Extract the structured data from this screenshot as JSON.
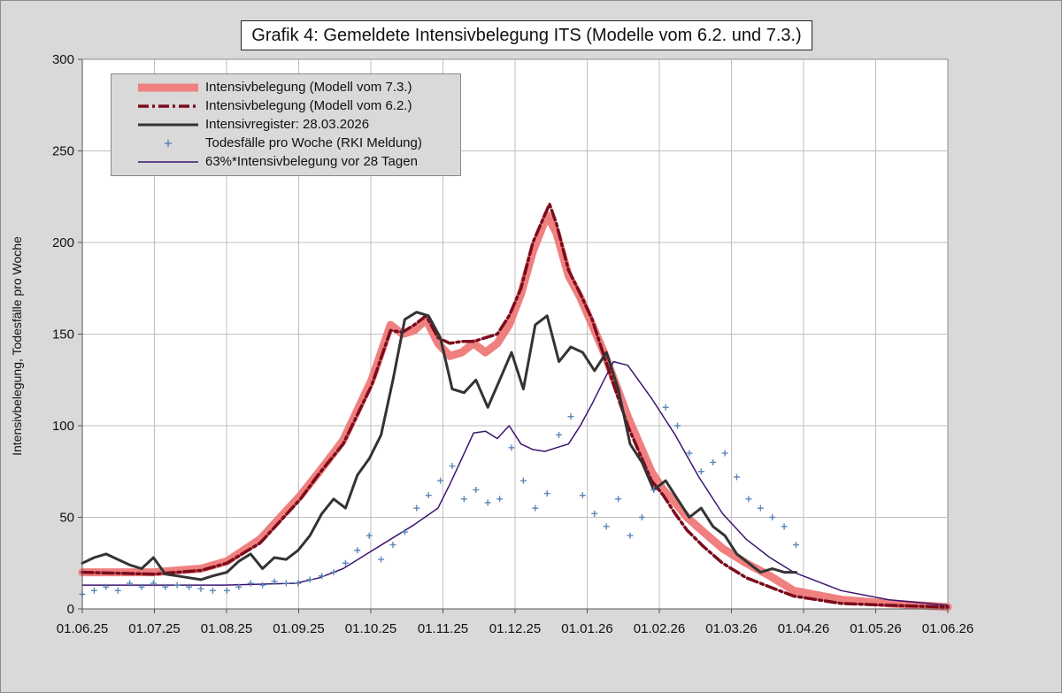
{
  "chart_data": {
    "type": "line",
    "title": "Grafik 4: Gemeldete Intensivbelegung ITS (Modelle vom 6.2. und 7.3.)",
    "ylabel": "Intensivbelegung, Todesfälle pro Woche",
    "xlabel": "",
    "ylim": [
      0,
      300
    ],
    "y_ticks": [
      "0",
      "50",
      "100",
      "150",
      "200",
      "250",
      "300"
    ],
    "x_ticks": [
      "01.06.25",
      "01.07.25",
      "01.08.25",
      "01.09.25",
      "01.10.25",
      "01.11.25",
      "01.12.25",
      "01.01.26",
      "01.02.26",
      "01.03.26",
      "01.04.26",
      "01.05.26",
      "01.06.26"
    ],
    "x_range_days": [
      0,
      365
    ],
    "grid": true,
    "legend_position": "top-left",
    "colors": {
      "model_73": "#f08080",
      "model_62": "#7b0c1c",
      "register": "#333333",
      "deaths": "#5b87b8",
      "shifted": "#3c1470",
      "background": "#d9d9d9"
    },
    "legend": [
      {
        "key": "model_73",
        "label": "Intensivbelegung  (Modell vom 7.3.)"
      },
      {
        "key": "model_62",
        "label": "Intensivbelegung  (Modell vom 6.2.)"
      },
      {
        "key": "register",
        "label": "Intensivregister: 28.03.2026"
      },
      {
        "key": "deaths",
        "label": "Todesfälle pro Woche (RKI Meldung)"
      },
      {
        "key": "shifted",
        "label": "63%*Intensivbelegung vor 28 Tagen"
      }
    ],
    "series": [
      {
        "key": "model_73",
        "name": "Intensivbelegung  (Modell vom 7.3.)",
        "style": "thick",
        "x": [
          0,
          30,
          50,
          61,
          75,
          92,
          100,
          110,
          122,
          130,
          135,
          140,
          145,
          150,
          155,
          160,
          165,
          170,
          175,
          180,
          185,
          190,
          196,
          200,
          205,
          210,
          215,
          220,
          230,
          240,
          245,
          250,
          255,
          262,
          270,
          280,
          290,
          300,
          320,
          340,
          365
        ],
        "y": [
          20,
          20,
          22,
          26,
          38,
          62,
          75,
          92,
          125,
          155,
          150,
          152,
          158,
          145,
          138,
          140,
          145,
          140,
          145,
          155,
          172,
          195,
          215,
          205,
          182,
          170,
          155,
          140,
          105,
          75,
          65,
          58,
          50,
          42,
          33,
          25,
          18,
          10,
          5,
          3,
          1
        ]
      },
      {
        "key": "model_62",
        "name": "Intensivbelegung  (Modell vom 6.2.)",
        "style": "dashdot",
        "x": [
          0,
          30,
          50,
          61,
          75,
          92,
          100,
          110,
          122,
          130,
          135,
          140,
          145,
          150,
          155,
          160,
          165,
          170,
          175,
          180,
          185,
          190,
          197,
          200,
          205,
          210,
          215,
          220,
          230,
          240,
          245,
          250,
          255,
          262,
          270,
          280,
          290,
          300,
          320,
          340,
          365
        ],
        "y": [
          20,
          19,
          21,
          25,
          36,
          60,
          74,
          90,
          122,
          152,
          151,
          155,
          160,
          148,
          145,
          146,
          146,
          148,
          150,
          160,
          175,
          200,
          221,
          210,
          185,
          172,
          158,
          138,
          100,
          70,
          62,
          52,
          43,
          34,
          25,
          17,
          12,
          7,
          3,
          2,
          1
        ]
      },
      {
        "key": "register",
        "name": "Intensivregister: 28.03.2026",
        "style": "solid",
        "x": [
          0,
          5,
          10,
          15,
          20,
          25,
          30,
          35,
          40,
          45,
          50,
          55,
          61,
          66,
          71,
          76,
          81,
          86,
          91,
          96,
          101,
          106,
          111,
          116,
          121,
          126,
          131,
          136,
          141,
          146,
          151,
          156,
          161,
          166,
          171,
          176,
          181,
          186,
          191,
          196,
          201,
          206,
          211,
          216,
          221,
          226,
          231,
          236,
          241,
          246,
          251,
          256,
          261,
          266,
          271,
          276,
          281,
          286,
          291,
          296,
          301
        ],
        "y": [
          25,
          28,
          30,
          27,
          24,
          22,
          28,
          19,
          18,
          17,
          16,
          18,
          20,
          26,
          30,
          22,
          28,
          27,
          32,
          40,
          52,
          60,
          55,
          73,
          82,
          95,
          125,
          158,
          162,
          160,
          148,
          120,
          118,
          125,
          110,
          125,
          140,
          120,
          155,
          160,
          135,
          143,
          140,
          130,
          140,
          120,
          90,
          80,
          65,
          70,
          60,
          50,
          55,
          45,
          40,
          30,
          25,
          20,
          22,
          20,
          20
        ]
      },
      {
        "key": "deaths",
        "name": "Todesfälle pro Woche (RKI Meldung)",
        "style": "markers",
        "x": [
          0,
          5,
          10,
          15,
          20,
          25,
          30,
          35,
          40,
          45,
          50,
          55,
          61,
          66,
          71,
          76,
          81,
          86,
          91,
          96,
          101,
          106,
          111,
          116,
          121,
          126,
          131,
          136,
          141,
          146,
          151,
          156,
          161,
          166,
          171,
          176,
          181,
          186,
          191,
          196,
          201,
          206,
          211,
          216,
          221,
          226,
          231,
          236,
          241,
          246,
          251,
          256,
          261,
          266,
          271,
          276,
          281,
          286,
          291,
          296,
          301
        ],
        "y": [
          8,
          10,
          12,
          10,
          14,
          12,
          14,
          12,
          13,
          12,
          11,
          10,
          10,
          12,
          14,
          13,
          15,
          14,
          14,
          16,
          18,
          20,
          25,
          32,
          40,
          27,
          35,
          42,
          55,
          62,
          70,
          78,
          60,
          65,
          58,
          60,
          88,
          70,
          55,
          63,
          95,
          105,
          62,
          52,
          45,
          60,
          40,
          50,
          65,
          110,
          100,
          85,
          75,
          80,
          85,
          72,
          60,
          55,
          50,
          45,
          35
        ]
      },
      {
        "key": "shifted",
        "name": "63%*Intensivbelegung vor 28 Tagen",
        "style": "thin",
        "x": [
          0,
          30,
          60,
          90,
          100,
          110,
          120,
          130,
          140,
          150,
          155,
          160,
          165,
          170,
          175,
          180,
          185,
          190,
          195,
          200,
          205,
          210,
          215,
          220,
          224,
          230,
          240,
          250,
          260,
          270,
          280,
          290,
          300,
          320,
          340,
          365
        ],
        "y": [
          13,
          13,
          13,
          14,
          17,
          22,
          30,
          38,
          46,
          55,
          68,
          82,
          96,
          97,
          93,
          100,
          90,
          87,
          86,
          88,
          90,
          100,
          112,
          125,
          135,
          133,
          115,
          95,
          72,
          52,
          38,
          28,
          20,
          10,
          5,
          2
        ]
      }
    ]
  }
}
